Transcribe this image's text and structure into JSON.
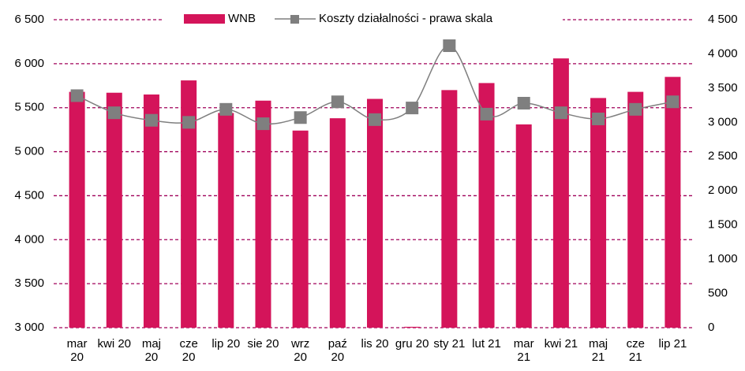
{
  "chart_data": {
    "type": "bar_line",
    "categories": [
      "mar 20",
      "kwi 20",
      "maj 20",
      "cze 20",
      "lip 20",
      "sie 20",
      "wrz 20",
      "paź 20",
      "lis 20",
      "gru 20",
      "sty 21",
      "lut 21",
      "mar 21",
      "kwi 21",
      "maj 21",
      "cze 21",
      "lip 21"
    ],
    "series": [
      {
        "name": "WNB",
        "type": "bar",
        "color": "#d4145a",
        "values": [
          5680,
          5670,
          5650,
          5810,
          5440,
          5580,
          5240,
          5380,
          5600,
          3010,
          5700,
          5780,
          5310,
          6060,
          5610,
          5680,
          5850
        ]
      },
      {
        "name": "Koszty działalności - prawa skala",
        "type": "line",
        "axis": "y2",
        "color": "#7f7f7f",
        "values": [
          3390,
          3140,
          3030,
          3000,
          3190,
          2980,
          3070,
          3300,
          3040,
          3210,
          4120,
          3120,
          3280,
          3140,
          3050,
          3190,
          3300
        ]
      }
    ],
    "ylim": [
      3000,
      6500
    ],
    "yticks": [
      {
        "value": 3000,
        "label": "3 000"
      },
      {
        "value": 3500,
        "label": "3 500"
      },
      {
        "value": 4000,
        "label": "4 000"
      },
      {
        "value": 4500,
        "label": "4 500"
      },
      {
        "value": 5000,
        "label": "5 000"
      },
      {
        "value": 5500,
        "label": "5 500"
      },
      {
        "value": 6000,
        "label": "6 000"
      },
      {
        "value": 6500,
        "label": "6 500"
      }
    ],
    "y2lim": [
      0,
      4500
    ],
    "y2ticks": [
      0,
      500,
      {
        "value": 1000,
        "label": "1 000"
      },
      {
        "value": 1500,
        "label": "1 500"
      },
      {
        "value": 2000,
        "label": "2 000"
      },
      {
        "value": 2500,
        "label": "2 500"
      },
      {
        "value": 3000,
        "label": "3 000"
      },
      {
        "value": 3500,
        "label": "3 500"
      },
      {
        "value": 4000,
        "label": "4 000"
      },
      {
        "value": 4500,
        "label": "4 500"
      }
    ],
    "grid": true,
    "grid_color": "#a0005a",
    "legend": "top"
  }
}
